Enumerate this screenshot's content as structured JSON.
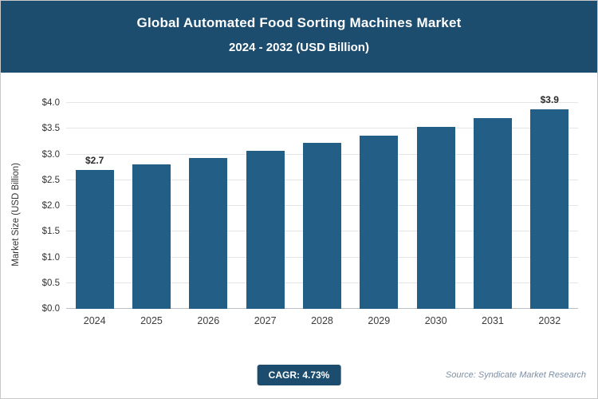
{
  "header": {
    "title_line1": "Global Automated Food Sorting Machines Market",
    "title_line2": "2024 - 2032 (USD Billion)"
  },
  "chart_data": {
    "type": "bar",
    "title": "Global Automated Food Sorting Machines Market 2024 - 2032 (USD Billion)",
    "categories": [
      "2024",
      "2025",
      "2026",
      "2027",
      "2028",
      "2029",
      "2030",
      "2031",
      "2032"
    ],
    "values": [
      2.7,
      2.8,
      2.93,
      3.07,
      3.22,
      3.37,
      3.53,
      3.7,
      3.87
    ],
    "data_labels": [
      "$2.7",
      null,
      null,
      null,
      null,
      null,
      null,
      null,
      "$3.9"
    ],
    "xlabel": "",
    "ylabel": "Market Size (USD Billion)",
    "ylim": [
      0,
      4.0
    ],
    "yticks": [
      0,
      0.5,
      1.0,
      1.5,
      2.0,
      2.5,
      3.0,
      3.5,
      4.0
    ],
    "ytick_labels": [
      "$0.0",
      "$0.5",
      "$1.0",
      "$1.5",
      "$2.0",
      "$2.5",
      "$3.0",
      "$3.5",
      "$4.0"
    ],
    "grid": true,
    "legend": false,
    "bar_color": "#235e86"
  },
  "footer": {
    "cagr_label": "CAGR: 4.73%",
    "source": "Source: Syndicate Market Research"
  },
  "colors": {
    "header_bg": "#1d4d6e",
    "bar": "#235e86",
    "badge_bg": "#1d4d6e",
    "gridline": "#e3e6e8"
  }
}
